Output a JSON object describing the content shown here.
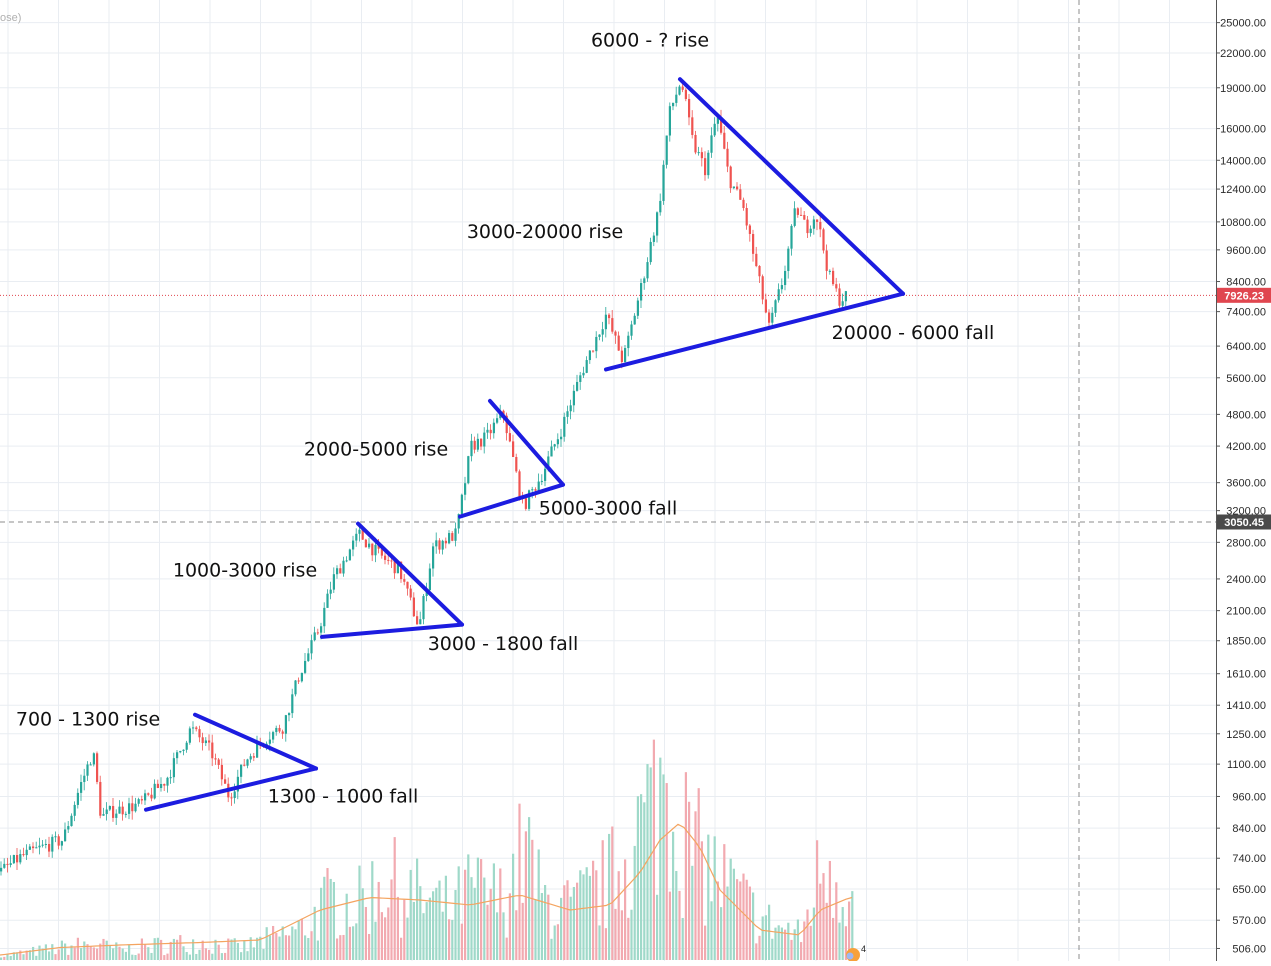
{
  "header": {
    "corner_text": "ose)"
  },
  "chart_data": {
    "type": "candlestick",
    "scale": "log",
    "grid": true,
    "ylim": [
      480,
      27500
    ],
    "y_ticks": [
      "25000.00",
      "22000.00",
      "19000.00",
      "16000.00",
      "14000.00",
      "12400.00",
      "10800.00",
      "9600.00",
      "8400.00",
      "7400.00",
      "6400.00",
      "5600.00",
      "4800.00",
      "4200.00",
      "3600.00",
      "3200.00",
      "2800.00",
      "2400.00",
      "2100.00",
      "1850.00",
      "1610.00",
      "1410.00",
      "1250.00",
      "1100.00",
      "960.00",
      "840.00",
      "740.00",
      "650.00",
      "570.00",
      "506.00"
    ],
    "price_path": [
      [
        0,
        700
      ],
      [
        20,
        745
      ],
      [
        45,
        780
      ],
      [
        62,
        800
      ],
      [
        78,
        990
      ],
      [
        92,
        1160
      ],
      [
        100,
        880
      ],
      [
        110,
        900
      ],
      [
        140,
        930
      ],
      [
        165,
        1030
      ],
      [
        190,
        1280
      ],
      [
        210,
        1160
      ],
      [
        228,
        960
      ],
      [
        245,
        1120
      ],
      [
        262,
        1220
      ],
      [
        282,
        1290
      ],
      [
        298,
        1600
      ],
      [
        318,
        1950
      ],
      [
        332,
        2400
      ],
      [
        358,
        2900
      ],
      [
        378,
        2650
      ],
      [
        398,
        2500
      ],
      [
        418,
        1960
      ],
      [
        432,
        2750
      ],
      [
        455,
        2900
      ],
      [
        470,
        4200
      ],
      [
        485,
        4350
      ],
      [
        502,
        4850
      ],
      [
        522,
        3250
      ],
      [
        540,
        3700
      ],
      [
        560,
        4500
      ],
      [
        580,
        5700
      ],
      [
        605,
        7300
      ],
      [
        622,
        6000
      ],
      [
        640,
        8200
      ],
      [
        658,
        11500
      ],
      [
        668,
        17000
      ],
      [
        680,
        19600
      ],
      [
        692,
        15000
      ],
      [
        704,
        13500
      ],
      [
        716,
        17000
      ],
      [
        728,
        13000
      ],
      [
        742,
        11500
      ],
      [
        760,
        8100
      ],
      [
        768,
        6900
      ],
      [
        782,
        8500
      ],
      [
        795,
        11500
      ],
      [
        805,
        10500
      ],
      [
        815,
        11200
      ],
      [
        828,
        8600
      ],
      [
        838,
        7800
      ],
      [
        848,
        7926
      ]
    ],
    "volume_profile": [
      [
        0,
        0.02
      ],
      [
        60,
        0.06
      ],
      [
        90,
        0.08
      ],
      [
        120,
        0.05
      ],
      [
        150,
        0.07
      ],
      [
        200,
        0.09
      ],
      [
        240,
        0.06
      ],
      [
        280,
        0.12
      ],
      [
        300,
        0.15
      ],
      [
        330,
        0.3
      ],
      [
        360,
        0.28
      ],
      [
        380,
        0.4
      ],
      [
        420,
        0.3
      ],
      [
        450,
        0.25
      ],
      [
        470,
        0.35
      ],
      [
        500,
        0.3
      ],
      [
        525,
        0.55
      ],
      [
        540,
        0.3
      ],
      [
        570,
        0.25
      ],
      [
        610,
        0.4
      ],
      [
        640,
        0.65
      ],
      [
        665,
        0.9
      ],
      [
        690,
        0.55
      ],
      [
        720,
        0.4
      ],
      [
        760,
        0.2
      ],
      [
        800,
        0.12
      ],
      [
        825,
        0.55
      ],
      [
        840,
        0.4
      ],
      [
        850,
        0.3
      ]
    ],
    "volume_ma": [
      [
        0,
        0.02
      ],
      [
        60,
        0.05
      ],
      [
        120,
        0.06
      ],
      [
        200,
        0.07
      ],
      [
        260,
        0.08
      ],
      [
        320,
        0.2
      ],
      [
        370,
        0.25
      ],
      [
        420,
        0.24
      ],
      [
        470,
        0.22
      ],
      [
        520,
        0.26
      ],
      [
        570,
        0.2
      ],
      [
        610,
        0.22
      ],
      [
        640,
        0.35
      ],
      [
        660,
        0.48
      ],
      [
        680,
        0.55
      ],
      [
        700,
        0.45
      ],
      [
        720,
        0.28
      ],
      [
        760,
        0.12
      ],
      [
        800,
        0.1
      ],
      [
        820,
        0.2
      ],
      [
        850,
        0.25
      ]
    ],
    "current_price": {
      "value": 7926.23,
      "label": "7926.23",
      "color": "#e0464f"
    },
    "crosshair_price": {
      "value": 3050.45,
      "label": "3050.45"
    },
    "bull_color": "#26a69a",
    "bear_color": "#ef5350",
    "drawing_color": "#1c1ce0",
    "annotations": [
      {
        "text": "6000 - ? rise",
        "x": 650,
        "price": 22600
      },
      {
        "text": "3000-20000 rise",
        "x": 545,
        "price": 10100
      },
      {
        "text": "20000 - 6000 fall",
        "x": 913,
        "price": 6600
      },
      {
        "text": "2000-5000 rise",
        "x": 376,
        "price": 4040
      },
      {
        "text": "5000-3000 fall",
        "x": 608,
        "price": 3150
      },
      {
        "text": "1000-3000 rise",
        "x": 245,
        "price": 2425
      },
      {
        "text": "3000 - 1800 fall",
        "x": 503,
        "price": 1780
      },
      {
        "text": "700 - 1300 rise",
        "x": 88,
        "price": 1295
      },
      {
        "text": "1300 - 1000 fall",
        "x": 343,
        "price": 935
      }
    ],
    "trendlines": [
      [
        [
          195,
          1355
        ],
        [
          316,
          1080
        ]
      ],
      [
        [
          316,
          1080
        ],
        [
          146,
          908
        ]
      ],
      [
        [
          358,
          3030
        ],
        [
          462,
          1980
        ]
      ],
      [
        [
          462,
          1980
        ],
        [
          322,
          1880
        ]
      ],
      [
        [
          490,
          5080
        ],
        [
          563,
          3570
        ]
      ],
      [
        [
          563,
          3570
        ],
        [
          460,
          3120
        ]
      ],
      [
        [
          680,
          19700
        ],
        [
          903,
          7980
        ]
      ],
      [
        [
          903,
          7980
        ],
        [
          606,
          5800
        ]
      ]
    ],
    "badge_text": "4"
  }
}
